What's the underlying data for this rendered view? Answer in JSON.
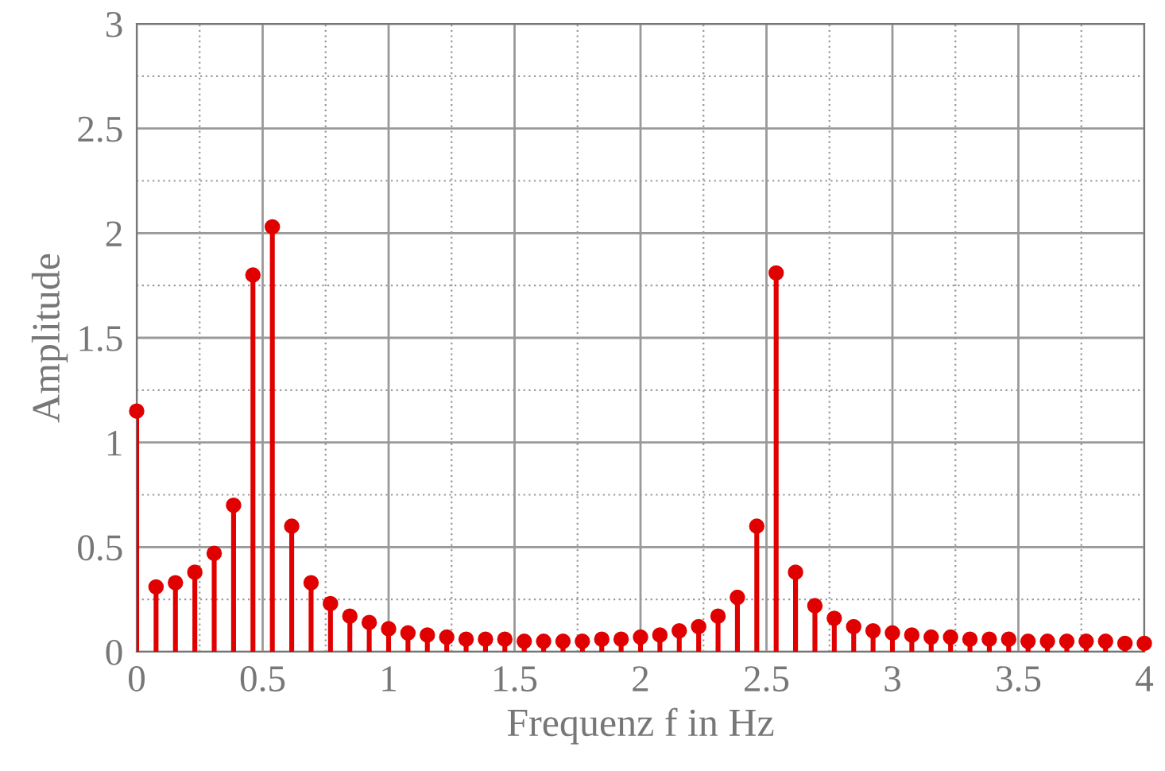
{
  "chart_data": {
    "type": "lollipop",
    "xlabel": "Frequenz f in Hz",
    "ylabel": "Amplitude",
    "x": [
      0,
      0.0769,
      0.1538,
      0.2308,
      0.3077,
      0.3846,
      0.4615,
      0.5385,
      0.6154,
      0.6923,
      0.7692,
      0.8462,
      0.9231,
      1.0,
      1.0769,
      1.1538,
      1.2308,
      1.3077,
      1.3846,
      1.4615,
      1.5385,
      1.6154,
      1.6923,
      1.7692,
      1.8462,
      1.9231,
      2.0,
      2.0769,
      2.1538,
      2.2308,
      2.3077,
      2.3846,
      2.4615,
      2.5385,
      2.6154,
      2.6923,
      2.7692,
      2.8462,
      2.9231,
      3.0,
      3.0769,
      3.1538,
      3.2308,
      3.3077,
      3.3846,
      3.4615,
      3.5385,
      3.6154,
      3.6923,
      3.7692,
      3.8462,
      3.9231,
      4.0
    ],
    "series": [
      {
        "color": "#e00000",
        "values": [
          1.15,
          0.31,
          0.33,
          0.38,
          0.47,
          0.7,
          1.8,
          2.03,
          0.6,
          0.33,
          0.23,
          0.17,
          0.14,
          0.11,
          0.09,
          0.08,
          0.07,
          0.06,
          0.06,
          0.06,
          0.05,
          0.05,
          0.05,
          0.05,
          0.06,
          0.06,
          0.07,
          0.08,
          0.1,
          0.12,
          0.17,
          0.26,
          0.6,
          1.81,
          0.38,
          0.22,
          0.16,
          0.12,
          0.1,
          0.09,
          0.08,
          0.07,
          0.07,
          0.06,
          0.06,
          0.06,
          0.05,
          0.05,
          0.05,
          0.05,
          0.05,
          0.04,
          0.04
        ]
      }
    ],
    "xlim": [
      0,
      4
    ],
    "ylim": [
      0,
      3
    ],
    "xticks": [
      0,
      0.5,
      1,
      1.5,
      2,
      2.5,
      3,
      3.5,
      4
    ],
    "yticks": [
      0,
      0.5,
      1,
      1.5,
      2,
      2.5,
      3
    ],
    "grid": true,
    "marker": "circle",
    "legend": false
  }
}
